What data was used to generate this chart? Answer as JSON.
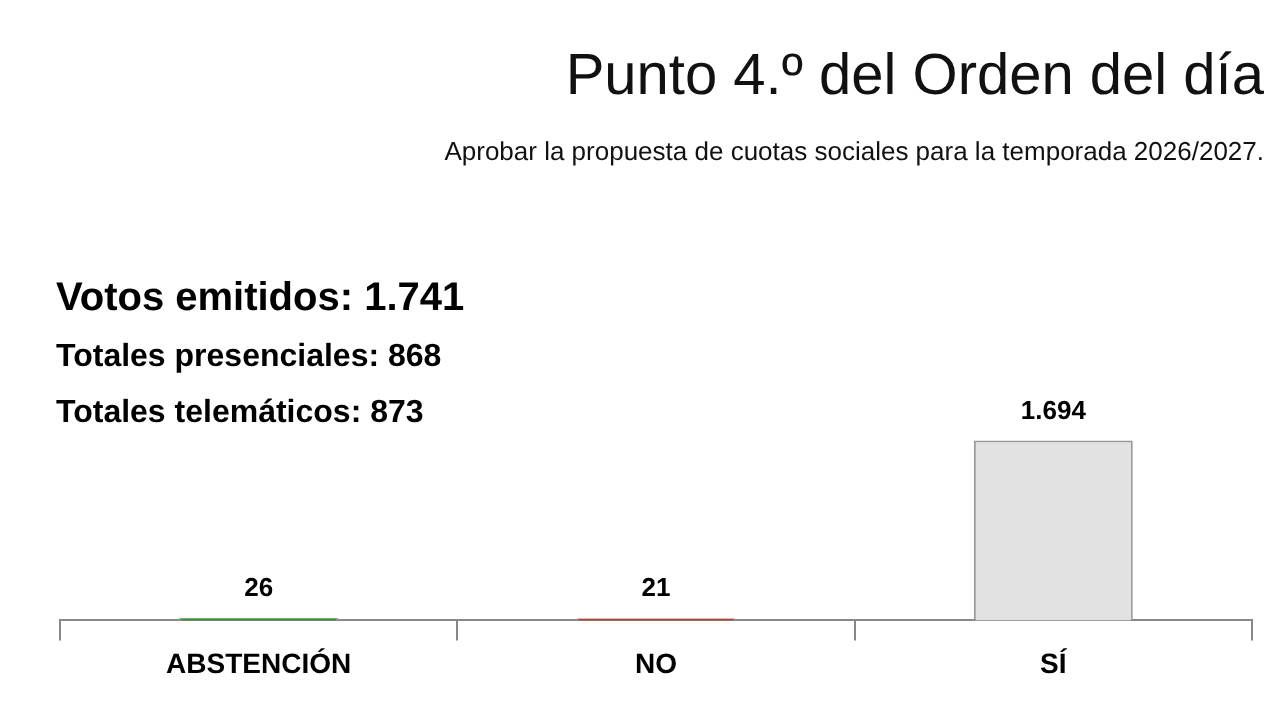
{
  "chart_data": {
    "type": "bar",
    "title": "Punto 4.º del Orden del día",
    "subtitle": "Aprobar la propuesta de cuotas sociales para la temporada 2026/2027.",
    "annotations": [
      "Votos emitidos: 1.741",
      "Totales presenciales: 868",
      "Totales telemáticos: 873"
    ],
    "categories": [
      "ABSTENCIÓN",
      "NO",
      "SÍ"
    ],
    "values": [
      26,
      21,
      1694
    ],
    "colors": [
      "#1c9a1c",
      "#d0200e",
      "#e2e2e2"
    ],
    "value_labels": [
      "26",
      "21",
      "1.694"
    ],
    "legend": false,
    "grid": false
  }
}
